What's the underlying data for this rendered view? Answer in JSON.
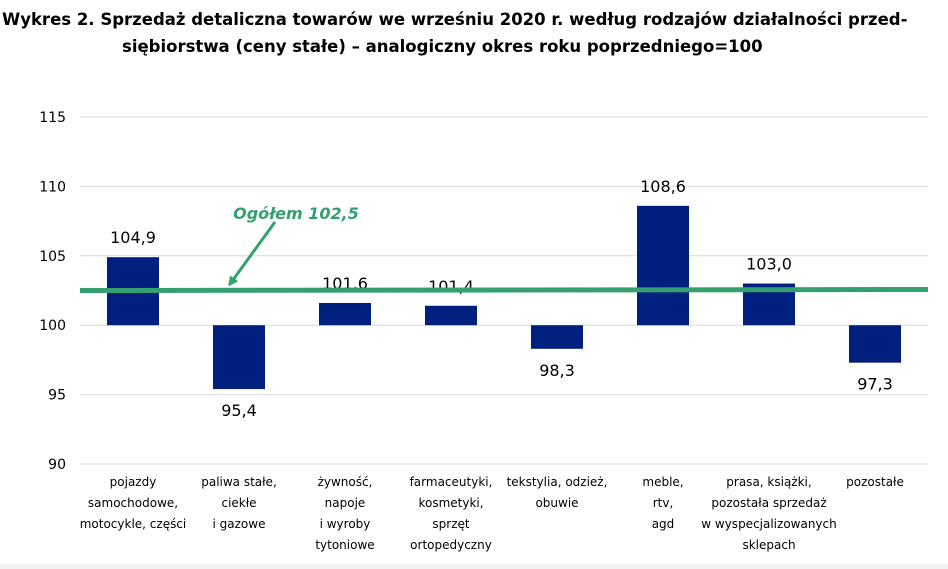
{
  "title_line1": "Wykres 2. Sprzedaż detaliczna towarów we wrześniu 2020 r. według rodzajów działalności przed-",
  "title_line2": "siębiorstwa (ceny stałe) – analogiczny okres roku poprzedniego=100",
  "colors": {
    "bar": "#002080",
    "reference_line": "#34a070",
    "grid": "#d9d9d9"
  },
  "chart_data": {
    "type": "bar",
    "baseline": 100,
    "ylim": [
      90,
      115
    ],
    "yticks": [
      90,
      95,
      100,
      105,
      110,
      115
    ],
    "grid": true,
    "categories": [
      [
        "pojazdy",
        "samochodowe,",
        "motocykle, części"
      ],
      [
        "paliwa stałe,",
        "ciekłe",
        "i gazowe"
      ],
      [
        "żywność,",
        "napoje",
        "i wyroby",
        "tytoniowe"
      ],
      [
        "farmaceutyki,",
        "kosmetyki,",
        "sprzęt",
        "ortopedyczny"
      ],
      [
        "tekstylia, odzież,",
        "obuwie"
      ],
      [
        "meble,",
        "rtv,",
        "agd"
      ],
      [
        "prasa, książki,",
        "pozostała sprzedaż",
        "w wyspecjalizowanych",
        "sklepach"
      ],
      [
        "pozostałe"
      ]
    ],
    "values": [
      104.9,
      95.4,
      101.6,
      101.4,
      98.3,
      108.6,
      103.0,
      97.3
    ],
    "value_labels": [
      "104,9",
      "95,4",
      "101,6",
      "101,4",
      "98,3",
      "108,6",
      "103,0",
      "97,3"
    ],
    "reference_line": {
      "value": 102.5,
      "label": "Ogółem 102,5"
    }
  }
}
